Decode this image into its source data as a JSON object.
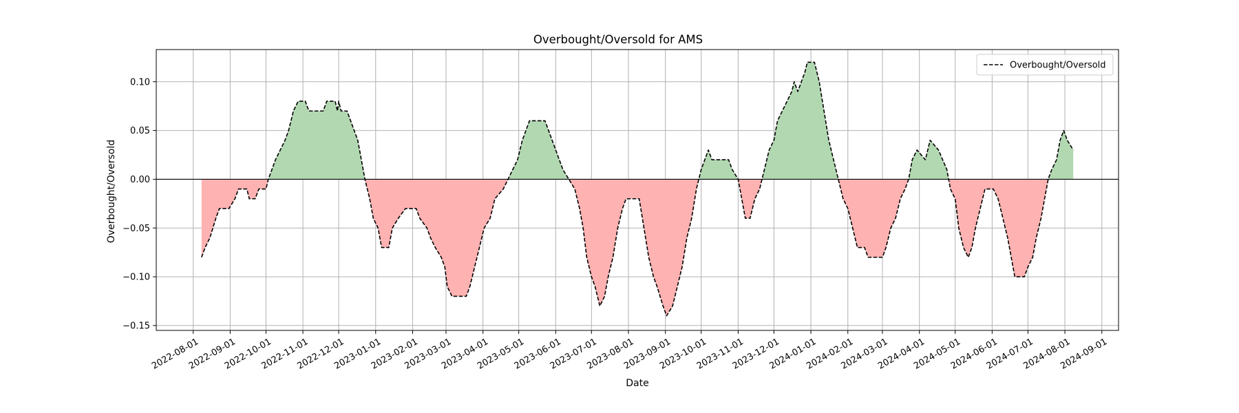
{
  "chart_data": {
    "type": "line",
    "title": "Overbought/Oversold for AMS",
    "xlabel": "Date",
    "ylabel": "Overbought/Oversold",
    "grid": true,
    "legend_position": "top-right",
    "xlim": [
      "2022-07-01",
      "2024-09-15"
    ],
    "ylim": [
      -0.155,
      0.133
    ],
    "x_ticks": [
      "2022-08-01",
      "2022-09-01",
      "2022-10-01",
      "2022-11-01",
      "2022-12-01",
      "2023-01-01",
      "2023-02-01",
      "2023-03-01",
      "2023-04-01",
      "2023-05-01",
      "2023-06-01",
      "2023-07-01",
      "2023-08-01",
      "2023-09-01",
      "2023-10-01",
      "2023-11-01",
      "2023-12-01",
      "2024-01-01",
      "2024-02-01",
      "2024-03-01",
      "2024-04-01",
      "2024-05-01",
      "2024-06-01",
      "2024-07-01",
      "2024-08-01",
      "2024-09-01"
    ],
    "y_ticks": [
      -0.15,
      -0.1,
      -0.05,
      0.0,
      0.05,
      0.1
    ],
    "y_tick_labels": [
      "−0.15",
      "−0.10",
      "−0.05",
      "0.00",
      "0.05",
      "0.10"
    ],
    "reference_line": 0,
    "colors": {
      "line": "#000000",
      "positive_fill": "#b2d8b2",
      "negative_fill": "#ffb2b2",
      "zero_line": "#000000",
      "grid": "#b0b0b0"
    },
    "series": [
      {
        "name": "Overbought/Oversold",
        "style": "dashed",
        "points": [
          [
            "2022-08-08",
            -0.08
          ],
          [
            "2022-08-11",
            -0.07
          ],
          [
            "2022-08-15",
            -0.06
          ],
          [
            "2022-08-20",
            -0.04
          ],
          [
            "2022-08-23",
            -0.03
          ],
          [
            "2022-08-31",
            -0.03
          ],
          [
            "2022-09-05",
            -0.02
          ],
          [
            "2022-09-08",
            -0.01
          ],
          [
            "2022-09-15",
            -0.01
          ],
          [
            "2022-09-17",
            -0.02
          ],
          [
            "2022-09-22",
            -0.02
          ],
          [
            "2022-09-25",
            -0.01
          ],
          [
            "2022-10-01",
            -0.01
          ],
          [
            "2022-10-03",
            0.0
          ],
          [
            "2022-10-06",
            0.01
          ],
          [
            "2022-10-09",
            0.02
          ],
          [
            "2022-10-13",
            0.03
          ],
          [
            "2022-10-17",
            0.04
          ],
          [
            "2022-10-20",
            0.05
          ],
          [
            "2022-10-24",
            0.07
          ],
          [
            "2022-10-28",
            0.08
          ],
          [
            "2022-11-03",
            0.08
          ],
          [
            "2022-11-06",
            0.07
          ],
          [
            "2022-11-18",
            0.07
          ],
          [
            "2022-11-21",
            0.08
          ],
          [
            "2022-11-28",
            0.08
          ],
          [
            "2022-11-30",
            0.07
          ],
          [
            "2022-12-01",
            0.08
          ],
          [
            "2022-12-03",
            0.07
          ],
          [
            "2022-12-08",
            0.07
          ],
          [
            "2022-12-11",
            0.06
          ],
          [
            "2022-12-14",
            0.05
          ],
          [
            "2022-12-17",
            0.04
          ],
          [
            "2022-12-20",
            0.02
          ],
          [
            "2022-12-23",
            0.0
          ],
          [
            "2022-12-27",
            -0.02
          ],
          [
            "2022-12-30",
            -0.04
          ],
          [
            "2023-01-03",
            -0.05
          ],
          [
            "2023-01-06",
            -0.07
          ],
          [
            "2023-01-12",
            -0.07
          ],
          [
            "2023-01-15",
            -0.05
          ],
          [
            "2023-01-20",
            -0.04
          ],
          [
            "2023-01-26",
            -0.03
          ],
          [
            "2023-02-04",
            -0.03
          ],
          [
            "2023-02-07",
            -0.04
          ],
          [
            "2023-02-13",
            -0.05
          ],
          [
            "2023-02-16",
            -0.06
          ],
          [
            "2023-02-20",
            -0.07
          ],
          [
            "2023-02-25",
            -0.08
          ],
          [
            "2023-02-28",
            -0.09
          ],
          [
            "2023-03-02",
            -0.11
          ],
          [
            "2023-03-06",
            -0.12
          ],
          [
            "2023-03-18",
            -0.12
          ],
          [
            "2023-03-21",
            -0.11
          ],
          [
            "2023-03-25",
            -0.09
          ],
          [
            "2023-03-29",
            -0.07
          ],
          [
            "2023-04-02",
            -0.05
          ],
          [
            "2023-04-07",
            -0.04
          ],
          [
            "2023-04-11",
            -0.02
          ],
          [
            "2023-04-18",
            -0.01
          ],
          [
            "2023-04-22",
            0.0
          ],
          [
            "2023-04-26",
            0.01
          ],
          [
            "2023-04-30",
            0.02
          ],
          [
            "2023-05-04",
            0.04
          ],
          [
            "2023-05-07",
            0.05
          ],
          [
            "2023-05-10",
            0.06
          ],
          [
            "2023-05-23",
            0.06
          ],
          [
            "2023-05-26",
            0.05
          ],
          [
            "2023-05-29",
            0.04
          ],
          [
            "2023-06-01",
            0.03
          ],
          [
            "2023-06-04",
            0.02
          ],
          [
            "2023-06-07",
            0.01
          ],
          [
            "2023-06-12",
            0.0
          ],
          [
            "2023-06-17",
            -0.01
          ],
          [
            "2023-06-21",
            -0.03
          ],
          [
            "2023-06-24",
            -0.05
          ],
          [
            "2023-06-27",
            -0.08
          ],
          [
            "2023-07-01",
            -0.1
          ],
          [
            "2023-07-04",
            -0.11
          ],
          [
            "2023-07-08",
            -0.13
          ],
          [
            "2023-07-12",
            -0.12
          ],
          [
            "2023-07-15",
            -0.1
          ],
          [
            "2023-07-19",
            -0.08
          ],
          [
            "2023-07-23",
            -0.05
          ],
          [
            "2023-07-27",
            -0.03
          ],
          [
            "2023-07-30",
            -0.02
          ],
          [
            "2023-08-10",
            -0.02
          ],
          [
            "2023-08-14",
            -0.05
          ],
          [
            "2023-08-18",
            -0.08
          ],
          [
            "2023-08-22",
            -0.1
          ],
          [
            "2023-08-25",
            -0.11
          ],
          [
            "2023-08-30",
            -0.13
          ],
          [
            "2023-09-02",
            -0.14
          ],
          [
            "2023-09-07",
            -0.13
          ],
          [
            "2023-09-11",
            -0.11
          ],
          [
            "2023-09-15",
            -0.09
          ],
          [
            "2023-09-19",
            -0.06
          ],
          [
            "2023-09-23",
            -0.04
          ],
          [
            "2023-09-27",
            -0.01
          ],
          [
            "2023-10-01",
            0.01
          ],
          [
            "2023-10-04",
            0.02
          ],
          [
            "2023-10-07",
            0.03
          ],
          [
            "2023-10-10",
            0.02
          ],
          [
            "2023-10-24",
            0.02
          ],
          [
            "2023-10-27",
            0.01
          ],
          [
            "2023-11-01",
            0.0
          ],
          [
            "2023-11-04",
            -0.02
          ],
          [
            "2023-11-07",
            -0.04
          ],
          [
            "2023-11-11",
            -0.04
          ],
          [
            "2023-11-15",
            -0.02
          ],
          [
            "2023-11-19",
            -0.01
          ],
          [
            "2023-11-23",
            0.01
          ],
          [
            "2023-11-27",
            0.03
          ],
          [
            "2023-12-01",
            0.04
          ],
          [
            "2023-12-04",
            0.06
          ],
          [
            "2023-12-08",
            0.07
          ],
          [
            "2023-12-12",
            0.08
          ],
          [
            "2023-12-16",
            0.09
          ],
          [
            "2023-12-18",
            0.1
          ],
          [
            "2023-12-21",
            0.09
          ],
          [
            "2023-12-24",
            0.1
          ],
          [
            "2023-12-27",
            0.11
          ],
          [
            "2023-12-29",
            0.12
          ],
          [
            "2024-01-04",
            0.12
          ],
          [
            "2024-01-08",
            0.1
          ],
          [
            "2024-01-12",
            0.07
          ],
          [
            "2024-01-16",
            0.04
          ],
          [
            "2024-01-20",
            0.02
          ],
          [
            "2024-01-24",
            0.0
          ],
          [
            "2024-01-28",
            -0.02
          ],
          [
            "2024-02-01",
            -0.03
          ],
          [
            "2024-02-05",
            -0.05
          ],
          [
            "2024-02-09",
            -0.07
          ],
          [
            "2024-02-15",
            -0.07
          ],
          [
            "2024-02-18",
            -0.08
          ],
          [
            "2024-03-01",
            -0.08
          ],
          [
            "2024-03-04",
            -0.07
          ],
          [
            "2024-03-08",
            -0.05
          ],
          [
            "2024-03-12",
            -0.04
          ],
          [
            "2024-03-16",
            -0.02
          ],
          [
            "2024-03-20",
            -0.01
          ],
          [
            "2024-03-23",
            0.0
          ],
          [
            "2024-03-26",
            0.02
          ],
          [
            "2024-03-30",
            0.03
          ],
          [
            "2024-04-06",
            0.02
          ],
          [
            "2024-04-10",
            0.04
          ],
          [
            "2024-04-17",
            0.03
          ],
          [
            "2024-04-24",
            0.01
          ],
          [
            "2024-04-27",
            -0.01
          ],
          [
            "2024-05-01",
            -0.02
          ],
          [
            "2024-05-04",
            -0.05
          ],
          [
            "2024-05-08",
            -0.07
          ],
          [
            "2024-05-12",
            -0.08
          ],
          [
            "2024-05-15",
            -0.07
          ],
          [
            "2024-05-18",
            -0.05
          ],
          [
            "2024-05-22",
            -0.03
          ],
          [
            "2024-05-26",
            -0.01
          ],
          [
            "2024-06-02",
            -0.01
          ],
          [
            "2024-06-06",
            -0.02
          ],
          [
            "2024-06-10",
            -0.04
          ],
          [
            "2024-06-14",
            -0.06
          ],
          [
            "2024-06-17",
            -0.08
          ],
          [
            "2024-06-20",
            -0.1
          ],
          [
            "2024-06-28",
            -0.1
          ],
          [
            "2024-07-01",
            -0.09
          ],
          [
            "2024-07-05",
            -0.08
          ],
          [
            "2024-07-08",
            -0.06
          ],
          [
            "2024-07-12",
            -0.04
          ],
          [
            "2024-07-15",
            -0.02
          ],
          [
            "2024-07-18",
            0.0
          ],
          [
            "2024-07-21",
            0.01
          ],
          [
            "2024-07-25",
            0.02
          ],
          [
            "2024-07-28",
            0.04
          ],
          [
            "2024-07-31",
            0.05
          ],
          [
            "2024-08-03",
            0.04
          ],
          [
            "2024-08-08",
            0.03
          ]
        ]
      }
    ]
  }
}
